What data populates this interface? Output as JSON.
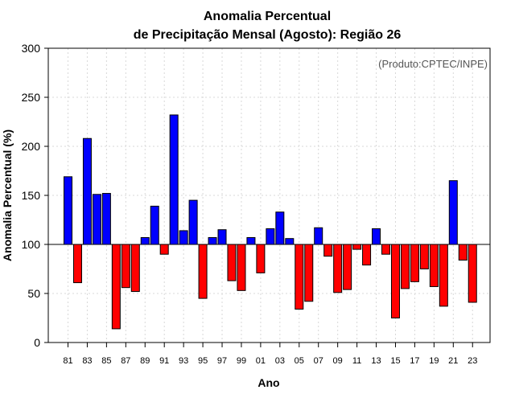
{
  "chart_data": {
    "type": "bar",
    "title_line1": "Anomalia Percentual",
    "title_line2": "de Precipitação Mensal (Agosto): Região 26",
    "xlabel": "Ano",
    "ylabel": "Anomalia Percentual (%)",
    "source": "(Produto:CPTEC/INPE)",
    "ylim": [
      0,
      300
    ],
    "yticks": [
      0,
      50,
      100,
      150,
      200,
      250,
      300
    ],
    "baseline": 100,
    "grid": true,
    "colors": {
      "above": "#0000ff",
      "below": "#ff0000",
      "edge": "#000000"
    },
    "categories": [
      "81",
      "82",
      "83",
      "84",
      "85",
      "86",
      "87",
      "88",
      "89",
      "90",
      "91",
      "92",
      "93",
      "94",
      "95",
      "96",
      "97",
      "98",
      "99",
      "00",
      "01",
      "02",
      "03",
      "04",
      "05",
      "06",
      "07",
      "08",
      "09",
      "10",
      "11",
      "12",
      "13",
      "14",
      "15",
      "16",
      "17",
      "18",
      "19",
      "20",
      "21",
      "22",
      "23"
    ],
    "xtick_labels": [
      "81",
      "83",
      "85",
      "87",
      "89",
      "91",
      "93",
      "95",
      "97",
      "99",
      "01",
      "03",
      "05",
      "07",
      "09",
      "11",
      "13",
      "15",
      "17",
      "19",
      "21",
      "23"
    ],
    "values": [
      169,
      61,
      208,
      151,
      152,
      14,
      56,
      52,
      107,
      139,
      90,
      232,
      114,
      145,
      45,
      107,
      115,
      63,
      53,
      107,
      71,
      116,
      133,
      106,
      34,
      42,
      117,
      88,
      51,
      54,
      95,
      79,
      116,
      90,
      25,
      55,
      62,
      75,
      57,
      37,
      165,
      84,
      41
    ]
  }
}
